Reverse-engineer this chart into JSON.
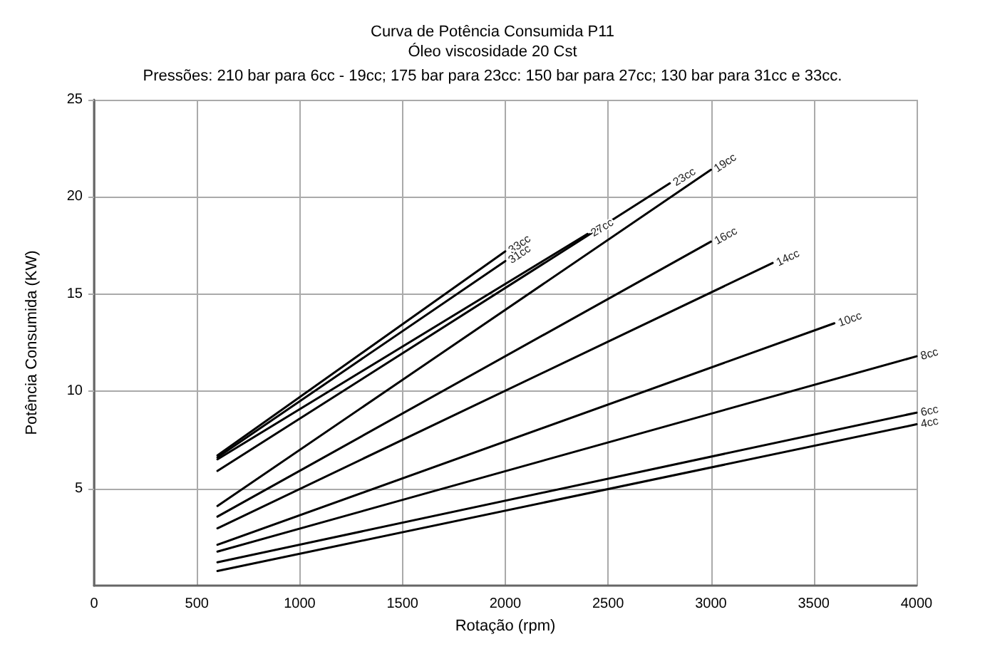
{
  "chart_data": {
    "type": "line",
    "title": "Curva de Potência Consumida P11",
    "subtitle": "Óleo viscosidade 20 Cst",
    "annotations": [
      "Pressões: 210 bar para 6cc - 19cc; 175 bar para 23cc: 150 bar para 27cc; 130 bar para 31cc e 33cc."
    ],
    "xlabel": "Rotação (rpm)",
    "ylabel": "Potência Consumida (KW)",
    "xlim": [
      0,
      4000
    ],
    "xticks": [
      0,
      500,
      1000,
      1500,
      2000,
      2500,
      3000,
      3500,
      4000
    ],
    "ylim": [
      0,
      25
    ],
    "yticks": [
      5,
      10,
      15,
      20,
      25
    ],
    "grid": true,
    "legend": false,
    "marker": "none",
    "line_style": "solid",
    "series": [
      {
        "name": "33cc",
        "color": "#000000",
        "x": [
          600,
          2000
        ],
        "values": [
          6.7,
          17.2
        ]
      },
      {
        "name": "31cc",
        "color": "#000000",
        "x": [
          600,
          2000
        ],
        "values": [
          6.6,
          16.7
        ]
      },
      {
        "name": "27cc",
        "color": "#000000",
        "x": [
          600,
          2400
        ],
        "values": [
          6.5,
          18.1
        ]
      },
      {
        "name": "23cc",
        "color": "#000000",
        "x": [
          600,
          2800
        ],
        "values": [
          5.9,
          20.7
        ]
      },
      {
        "name": "19cc",
        "color": "#000000",
        "x": [
          600,
          3000
        ],
        "values": [
          4.1,
          21.4
        ]
      },
      {
        "name": "16cc",
        "color": "#000000",
        "x": [
          600,
          3000
        ],
        "values": [
          3.55,
          17.7
        ]
      },
      {
        "name": "14cc",
        "color": "#000000",
        "x": [
          600,
          3300
        ],
        "values": [
          2.95,
          16.6
        ]
      },
      {
        "name": "10cc",
        "color": "#000000",
        "x": [
          600,
          3600
        ],
        "values": [
          2.1,
          13.5
        ]
      },
      {
        "name": "8cc",
        "color": "#000000",
        "x": [
          600,
          4000
        ],
        "values": [
          1.75,
          11.8
        ]
      },
      {
        "name": "6cc",
        "color": "#000000",
        "x": [
          600,
          4000
        ],
        "values": [
          1.2,
          8.9
        ]
      },
      {
        "name": "4cc",
        "color": "#000000",
        "x": [
          600,
          4000
        ],
        "values": [
          0.75,
          8.3
        ]
      }
    ]
  }
}
